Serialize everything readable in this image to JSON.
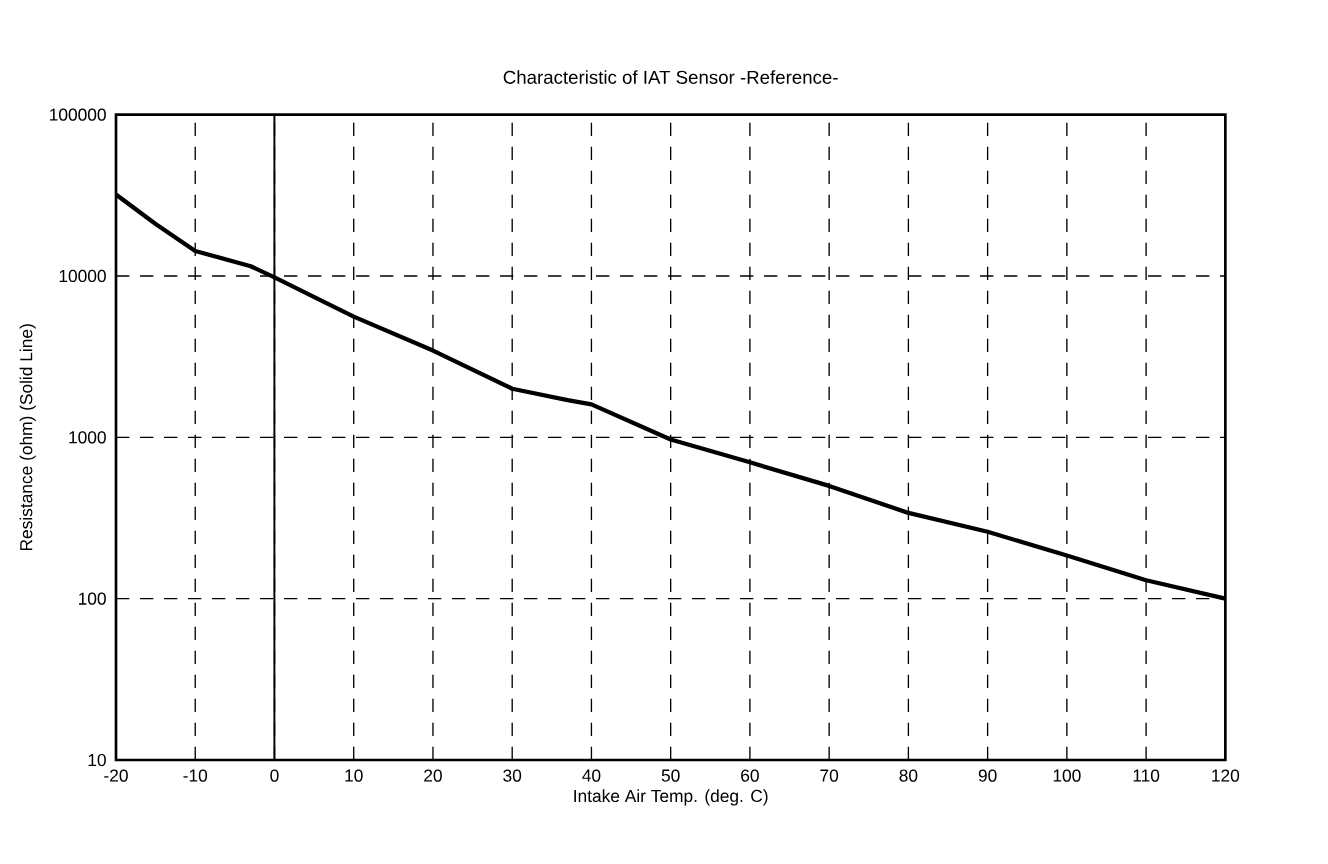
{
  "chart_data": {
    "type": "line",
    "title": "Characteristic of  IAT Sensor -Reference-",
    "xlabel": "Intake Air Temp. (deg. C)",
    "ylabel": "Resistance (ohm) (Solid Line)",
    "x": [
      -20,
      -15,
      -10,
      -3,
      0,
      10,
      20,
      30,
      37,
      40,
      50,
      60,
      70,
      80,
      90,
      100,
      110,
      120
    ],
    "series": [
      {
        "color": "#000000",
        "values": [
          32000,
          21000,
          14300,
          11500,
          9800,
          5600,
          3450,
          2000,
          1700,
          1600,
          970,
          700,
          500,
          340,
          260,
          185,
          130,
          100
        ]
      }
    ],
    "xlim": [
      -20,
      120
    ],
    "xticks": [
      -20,
      -10,
      0,
      10,
      20,
      30,
      40,
      50,
      60,
      70,
      80,
      90,
      100,
      110,
      120
    ],
    "ylim": [
      10,
      100000
    ],
    "yticks": [
      10,
      100,
      1000,
      10000,
      100000
    ],
    "log": "y",
    "grid": true,
    "line_style": "solid",
    "marker": "none",
    "ref_lines": [
      {
        "axis": "x",
        "value": 0,
        "color": "#000000",
        "line_style": "solid"
      }
    ]
  }
}
